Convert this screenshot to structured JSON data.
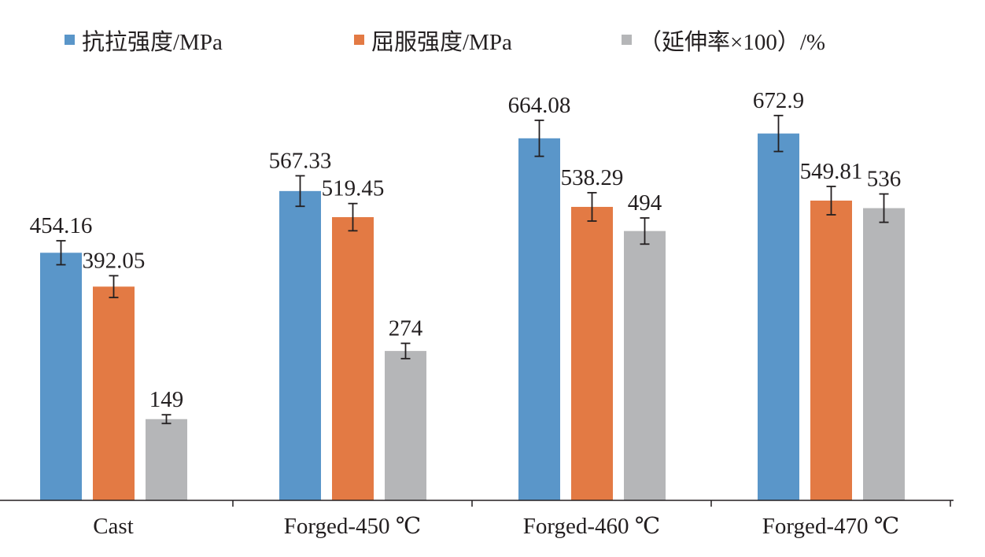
{
  "chart_data": {
    "type": "bar",
    "title": "",
    "xlabel": "",
    "ylabel": "",
    "ylim": [
      0,
      760
    ],
    "grid": false,
    "legend_position": "top",
    "categories": [
      "Cast",
      "Forged-450 ℃",
      "Forged-460 ℃",
      "Forged-470 ℃"
    ],
    "series": [
      {
        "name": "抗拉强度/MPa",
        "color": "#5a96c9",
        "values": [
          454.16,
          567.33,
          664.08,
          672.9
        ],
        "labels": [
          "454.16",
          "567.33",
          "664.08",
          "672.9"
        ],
        "errors": [
          22,
          28,
          33,
          33
        ]
      },
      {
        "name": "屈服强度/MPa",
        "color": "#e37a44",
        "values": [
          392.05,
          519.45,
          538.29,
          549.81
        ],
        "labels": [
          "392.05",
          "519.45",
          "538.29",
          "549.81"
        ],
        "errors": [
          20,
          25,
          26,
          26
        ]
      },
      {
        "name": "（延伸率×100）/%",
        "color": "#b5b6b8",
        "values": [
          149,
          274,
          494,
          536
        ],
        "labels": [
          "149",
          "274",
          "494",
          "536"
        ],
        "errors": [
          8,
          14,
          24,
          26
        ]
      }
    ]
  }
}
